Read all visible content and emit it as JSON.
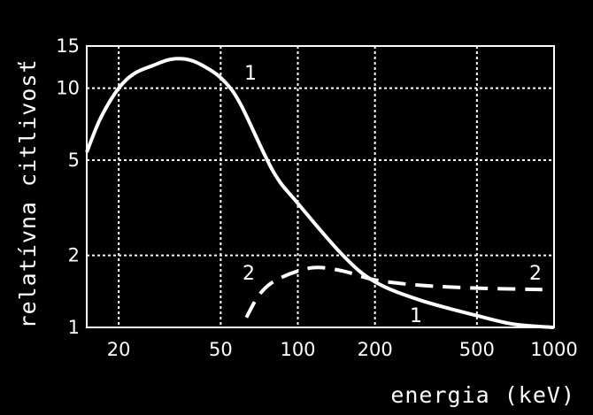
{
  "chart_data": {
    "type": "line",
    "title": "",
    "xlabel": "energia (keV)",
    "ylabel": "relatívna citlivosť",
    "x_scale": "log",
    "y_scale": "log",
    "xlim": [
      15,
      1000
    ],
    "ylim": [
      1,
      15
    ],
    "x_ticks": [
      20,
      50,
      100,
      200,
      500,
      1000
    ],
    "x_tick_labels": [
      "20",
      "50",
      "100",
      "200",
      "500",
      "1000"
    ],
    "y_ticks": [
      1,
      2,
      5,
      10,
      15
    ],
    "y_tick_labels": [
      "1",
      "2",
      "5",
      "10",
      "15"
    ],
    "grid": true,
    "series": [
      {
        "name": "1",
        "style": "solid",
        "color": "#ffffff",
        "points": [
          [
            15,
            5.4
          ],
          [
            17,
            7.5
          ],
          [
            20,
            10
          ],
          [
            23,
            11.5
          ],
          [
            27,
            12.4
          ],
          [
            32,
            13.2
          ],
          [
            38,
            13.1
          ],
          [
            45,
            12
          ],
          [
            52,
            10.6
          ],
          [
            60,
            8.5
          ],
          [
            80,
            4.5
          ],
          [
            100,
            3.3
          ],
          [
            150,
            2
          ],
          [
            200,
            1.55
          ],
          [
            300,
            1.3
          ],
          [
            500,
            1.12
          ],
          [
            700,
            1.03
          ],
          [
            1000,
            1
          ]
        ],
        "labels": [
          "1",
          "1"
        ]
      },
      {
        "name": "2",
        "style": "dashed",
        "color": "#ffffff",
        "points": [
          [
            63,
            1.1
          ],
          [
            70,
            1.35
          ],
          [
            80,
            1.55
          ],
          [
            100,
            1.72
          ],
          [
            120,
            1.78
          ],
          [
            150,
            1.72
          ],
          [
            200,
            1.58
          ],
          [
            300,
            1.5
          ],
          [
            500,
            1.46
          ],
          [
            900,
            1.44
          ]
        ],
        "labels": [
          "2",
          "2"
        ]
      }
    ]
  }
}
